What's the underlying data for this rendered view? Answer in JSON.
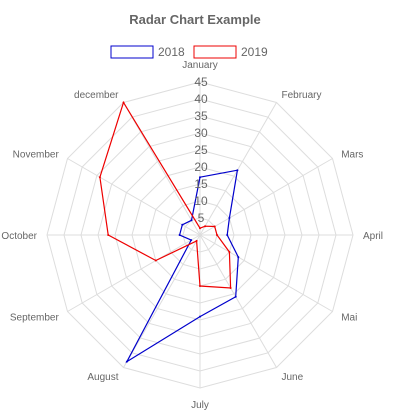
{
  "chart_data": {
    "type": "radar",
    "title": "Radar Chart Example",
    "categories": [
      "January",
      "February",
      "Mars",
      "April",
      "Mai",
      "June",
      "July",
      "August",
      "September",
      "October",
      "November",
      "december"
    ],
    "r_ticks": [
      5,
      10,
      15,
      20,
      25,
      30,
      35,
      40,
      45
    ],
    "r_range": [
      0,
      45
    ],
    "legend_position": "top",
    "grid": true,
    "series": [
      {
        "name": "2018",
        "color": "#0000cc",
        "values": [
          17,
          22,
          10,
          8,
          13,
          21,
          24,
          43,
          3,
          6,
          6,
          5
        ]
      },
      {
        "name": "2019",
        "color": "#ee0000",
        "values": [
          2,
          3,
          5,
          5,
          10,
          18,
          15,
          2,
          15,
          27,
          34,
          45
        ]
      }
    ]
  }
}
